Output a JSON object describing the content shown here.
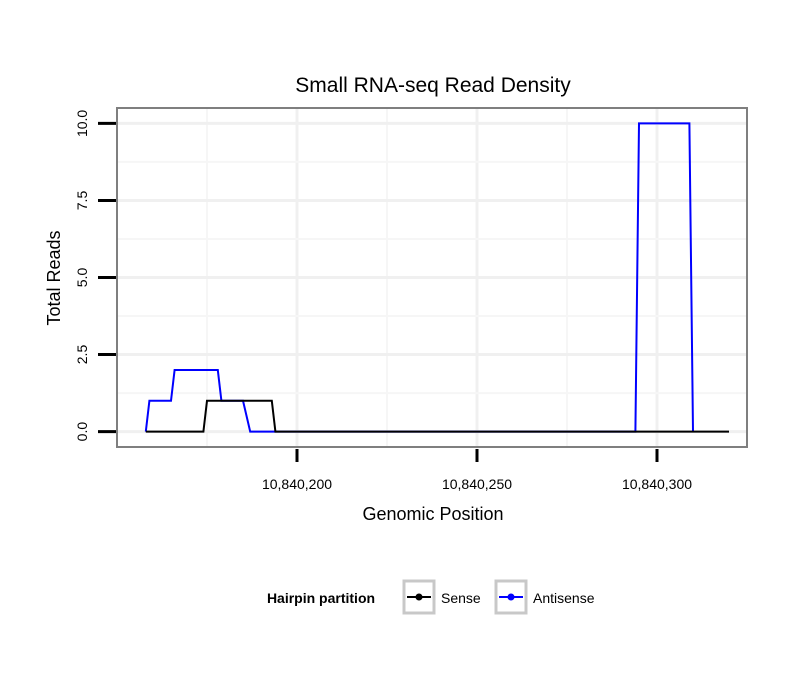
{
  "chart_data": {
    "type": "line",
    "title": "Small RNA-seq Read Density",
    "xlabel": "Genomic Position",
    "ylabel": "Total Reads",
    "xlim": [
      10840150,
      10840325
    ],
    "ylim": [
      -0.5,
      10.5
    ],
    "x_ticks": [
      {
        "value": 10840200,
        "label": "10,840,200"
      },
      {
        "value": 10840250,
        "label": "10,840,250"
      },
      {
        "value": 10840300,
        "label": "10,840,300"
      }
    ],
    "y_ticks": [
      {
        "value": 0,
        "label": "0.0"
      },
      {
        "value": 2.5,
        "label": "2.5"
      },
      {
        "value": 5,
        "label": "5.0"
      },
      {
        "value": 7.5,
        "label": "7.5"
      },
      {
        "value": 10,
        "label": "10.0"
      }
    ],
    "grid": true,
    "legend": {
      "title": "Hairpin partition",
      "position": "bottom"
    },
    "series": [
      {
        "name": "Antisense",
        "color": "#0000ff",
        "points": [
          [
            10840158,
            0
          ],
          [
            10840159,
            1
          ],
          [
            10840165,
            1
          ],
          [
            10840166,
            2
          ],
          [
            10840178,
            2
          ],
          [
            10840179,
            1
          ],
          [
            10840185,
            1
          ],
          [
            10840187,
            0
          ],
          [
            10840294,
            0
          ],
          [
            10840295,
            10
          ],
          [
            10840309,
            10
          ],
          [
            10840310,
            0
          ]
        ]
      },
      {
        "name": "Sense",
        "color": "#000000",
        "points": [
          [
            10840158,
            0
          ],
          [
            10840174,
            0
          ],
          [
            10840175,
            1
          ],
          [
            10840193,
            1
          ],
          [
            10840194,
            0
          ],
          [
            10840320,
            0
          ]
        ]
      }
    ]
  }
}
